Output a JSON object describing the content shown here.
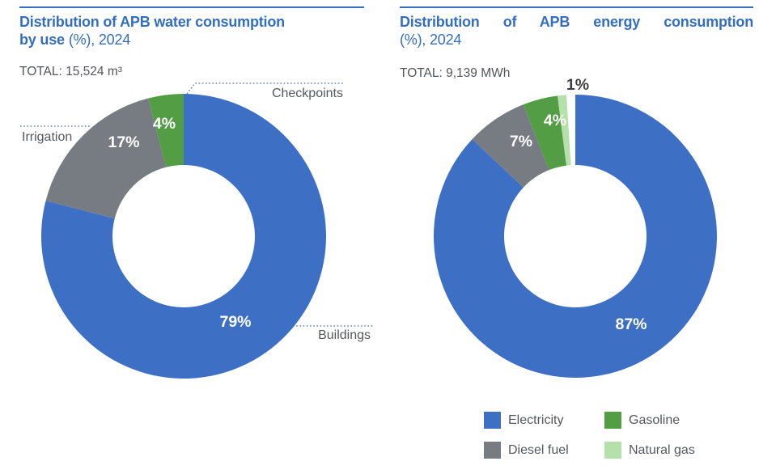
{
  "colors": {
    "accent_blue": "#336EC0",
    "series_blue": "#3D70C4",
    "series_gray": "#767C81",
    "series_green": "#539D45",
    "series_light_green": "#B5E0AB",
    "label_text": "#56585B",
    "leader_line": "#4A64B8",
    "pct_label_light": "#FFFFFF",
    "pct_label_dark": "#3E3E40"
  },
  "header": {
    "left": {
      "title_bold_line1": "Distribution of APB water consumption",
      "title_bold_line2": "by use",
      "title_suffix": "(%), 2024",
      "total_text": "TOTAL: 15,524 m³"
    },
    "right": {
      "title_bold_line1": "Distribution of APB energy consumption",
      "title_suffix": "(%), 2024",
      "total_text": "TOTAL: 9,139 MWh"
    }
  },
  "chart_data": [
    {
      "type": "pie",
      "subtype": "donut",
      "title": "Distribution of APB water consumption by use (%), 2024",
      "total": "TOTAL: 15,524 m³",
      "categories": [
        "Buildings",
        "Irrigation",
        "Checkpoints"
      ],
      "values": [
        79,
        17,
        4
      ],
      "unit": "%",
      "series_colors": [
        "#3D70C4",
        "#767C81",
        "#539D45"
      ],
      "start_angle_deg": 0,
      "direction": "clockwise",
      "labeling": "percent values inside slices; category names outside with dotted leader lines",
      "legend_position": "none"
    },
    {
      "type": "pie",
      "subtype": "donut",
      "title": "Distribution of APB energy consumption (%), 2024",
      "total": "TOTAL: 9,139 MWh",
      "categories": [
        "Electricity",
        "Diesel fuel",
        "Gasoline",
        "Natural gas"
      ],
      "values": [
        87,
        7,
        4,
        1
      ],
      "unit": "%",
      "series_colors": [
        "#3D70C4",
        "#767C81",
        "#539D45",
        "#B5E0AB"
      ],
      "start_angle_deg": 0,
      "direction": "clockwise",
      "labeling": "percent values inside slices (1% placed outside in dark text)",
      "legend_position": "bottom",
      "legend": [
        {
          "label": "Electricity",
          "color": "#3D70C4"
        },
        {
          "label": "Gasoline",
          "color": "#539D45"
        },
        {
          "label": "Diesel fuel",
          "color": "#767C81"
        },
        {
          "label": "Natural gas",
          "color": "#B5E0AB"
        }
      ]
    }
  ]
}
